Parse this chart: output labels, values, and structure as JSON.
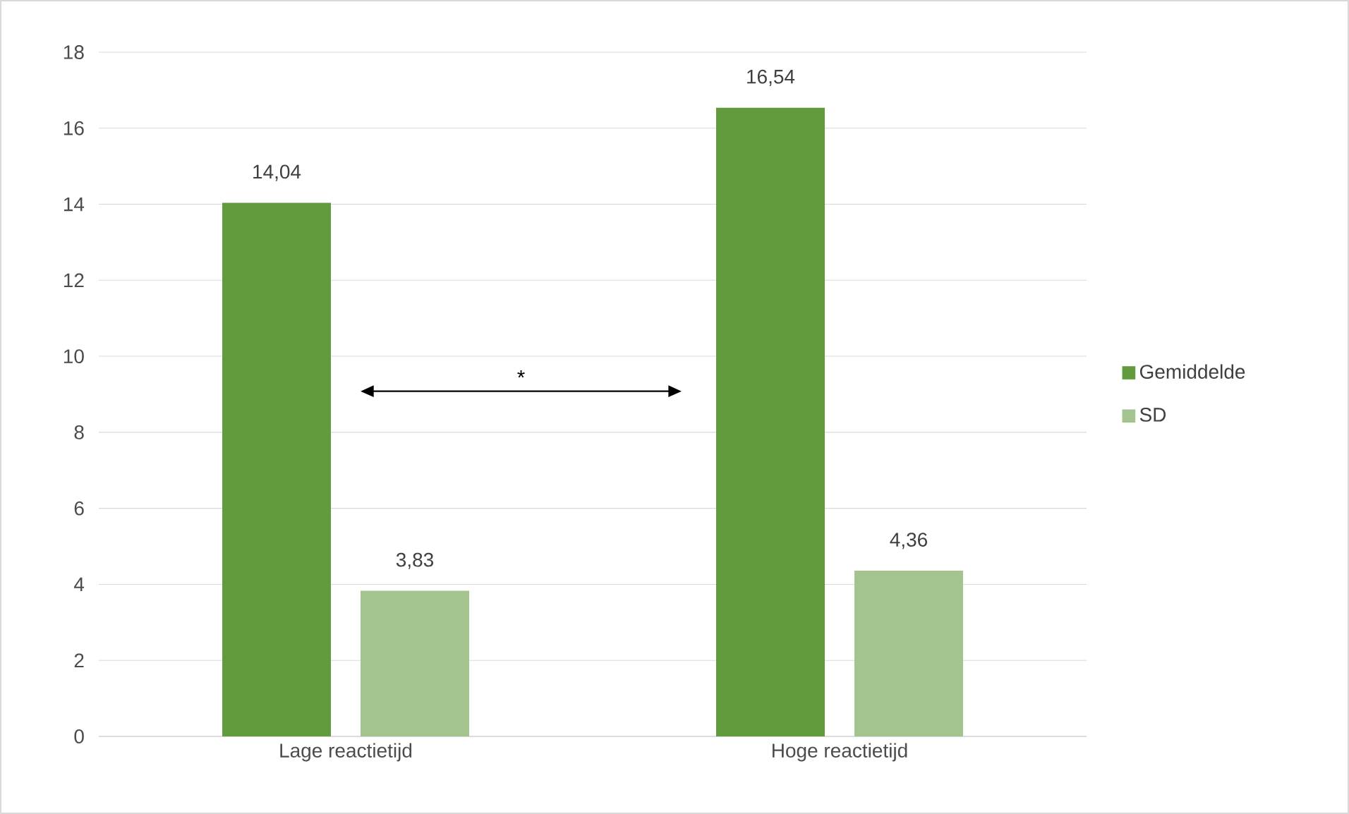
{
  "chart_data": {
    "type": "bar",
    "categories": [
      "Lage reactietijd",
      "Hoge reactietijd"
    ],
    "series": [
      {
        "name": "Gemiddelde",
        "color": "#629a3e",
        "values": [
          14.04,
          16.54
        ],
        "value_labels": [
          "14,04",
          "16,54"
        ]
      },
      {
        "name": "SD",
        "color": "#a3c48e",
        "values": [
          3.83,
          4.36
        ],
        "value_labels": [
          "3,83",
          "4,36"
        ]
      }
    ],
    "ylim": [
      0,
      18
    ],
    "yticks": [
      0,
      2,
      4,
      6,
      8,
      10,
      12,
      14,
      16,
      18
    ],
    "grid": "y",
    "legend": "right",
    "annotations": [
      "*"
    ]
  }
}
